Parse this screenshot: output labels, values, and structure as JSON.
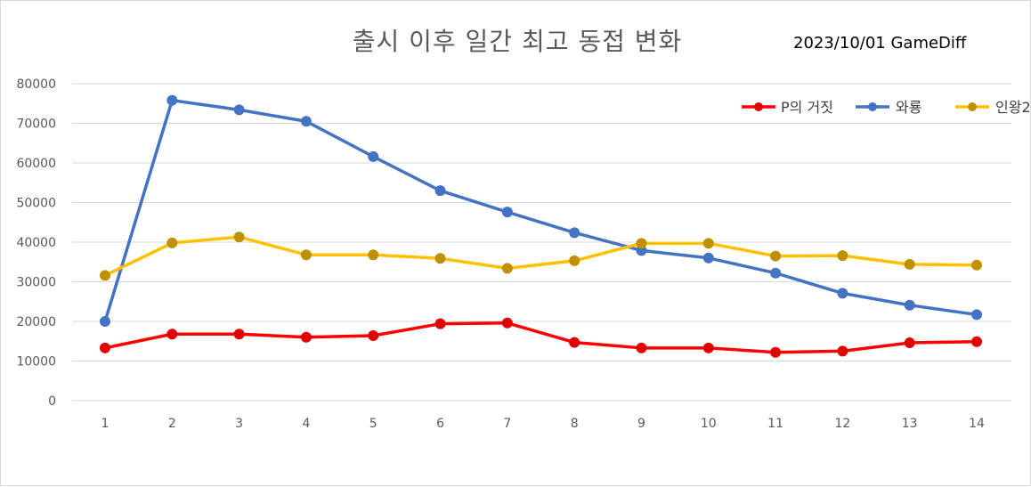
{
  "chart_data": {
    "type": "line",
    "title": "출시 이후 일간 최고 동접 변화",
    "subtitle": "2023/10/01 GameDiff",
    "xlabel": "",
    "ylabel": "",
    "categories": [
      "1",
      "2",
      "3",
      "4",
      "5",
      "6",
      "7",
      "8",
      "9",
      "10",
      "11",
      "12",
      "13",
      "14"
    ],
    "ylim": [
      0,
      80000
    ],
    "yticks": [
      0,
      10000,
      20000,
      30000,
      40000,
      50000,
      60000,
      70000,
      80000
    ],
    "grid": "horizontal",
    "legend_position": "top-right",
    "series": [
      {
        "name": "P의 거짓",
        "color": "#ff0000",
        "values": [
          13300,
          16800,
          16800,
          16000,
          16400,
          19400,
          19600,
          14700,
          13300,
          13300,
          12200,
          12500,
          14600,
          14900
        ]
      },
      {
        "name": "와룡",
        "color": "#4472c4",
        "values": [
          20000,
          75800,
          73400,
          70500,
          61600,
          53000,
          47600,
          42400,
          37900,
          36000,
          32200,
          27100,
          24100,
          21700
        ]
      },
      {
        "name": "인왕2",
        "color": "#ffc000",
        "values": [
          31600,
          39800,
          41300,
          36800,
          36800,
          35900,
          33400,
          35300,
          39700,
          39700,
          36500,
          36600,
          34400,
          34200
        ]
      }
    ]
  }
}
